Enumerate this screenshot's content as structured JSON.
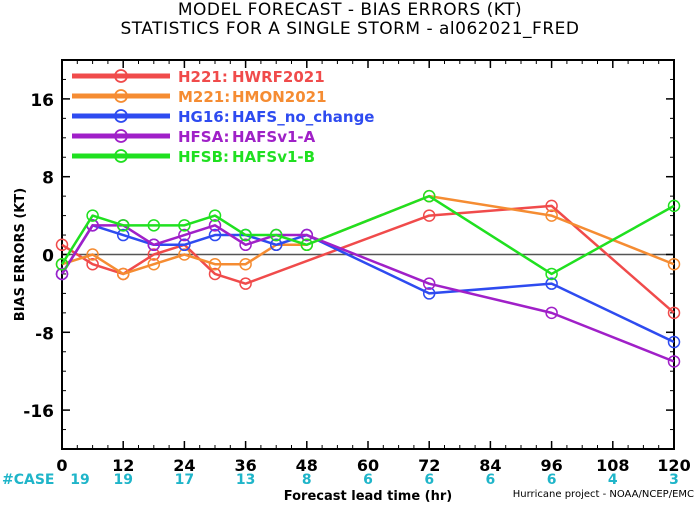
{
  "title": [
    "MODEL FORECAST - BIAS ERRORS (KT)",
    "STATISTICS FOR A SINGLE STORM - al062021_FRED"
  ],
  "credit": "Hurricane project - NOAA/NCEP/EMC",
  "chart_data": {
    "type": "line",
    "xlabel": "Forecast lead time (hr)",
    "ylabel": "BIAS ERRORS (KT)",
    "xlim": [
      0,
      120
    ],
    "ylim": [
      -20,
      20
    ],
    "x_ticks": [
      0,
      12,
      24,
      36,
      48,
      60,
      72,
      84,
      96,
      108,
      120
    ],
    "y_ticks": [
      -16,
      -8,
      0,
      8,
      16
    ],
    "zero_line": true,
    "grid": false,
    "legend_position": "top-left",
    "case_label": "#CASE",
    "case_color": "#1fb5c9",
    "cases": [
      {
        "x": 0,
        "n": "19"
      },
      {
        "x": 12,
        "n": "19"
      },
      {
        "x": 24,
        "n": "17"
      },
      {
        "x": 36,
        "n": "13"
      },
      {
        "x": 48,
        "n": "8"
      },
      {
        "x": 60,
        "n": "6"
      },
      {
        "x": 72,
        "n": "6"
      },
      {
        "x": 84,
        "n": "6"
      },
      {
        "x": 96,
        "n": "6"
      },
      {
        "x": 108,
        "n": "4"
      },
      {
        "x": 120,
        "n": "3"
      }
    ],
    "series": [
      {
        "name": "H221:",
        "desc": "HWRF2021",
        "color": "#f04b4b",
        "x": [
          0,
          6,
          12,
          18,
          24,
          30,
          36,
          72,
          96,
          120
        ],
        "y": [
          1,
          -1,
          -2,
          0,
          1,
          -2,
          -3,
          4,
          5,
          -6
        ]
      },
      {
        "name": "M221:",
        "desc": "HMON2021",
        "color": "#f58c32",
        "x": [
          0,
          6,
          12,
          18,
          24,
          30,
          36,
          42,
          48,
          72,
          96,
          120
        ],
        "y": [
          -1,
          0,
          -2,
          -1,
          0,
          -1,
          -1,
          1,
          1,
          6,
          4,
          -1
        ]
      },
      {
        "name": "HG16:",
        "desc": "HAFS_no_change",
        "color": "#2e4bf0",
        "x": [
          0,
          6,
          12,
          18,
          24,
          30,
          36,
          42,
          48,
          72,
          96,
          120
        ],
        "y": [
          -2,
          3,
          2,
          1,
          1,
          2,
          2,
          1,
          2,
          -4,
          -3,
          -9
        ]
      },
      {
        "name": "HFSA:",
        "desc": "HAFSv1-A",
        "color": "#a020c8",
        "x": [
          0,
          6,
          12,
          18,
          24,
          30,
          36,
          42,
          48,
          72,
          96,
          120
        ],
        "y": [
          -2,
          3,
          3,
          1,
          2,
          3,
          1,
          2,
          2,
          -3,
          -6,
          -11
        ]
      },
      {
        "name": "HFSB:",
        "desc": "HAFSv1-B",
        "color": "#20e020",
        "x": [
          0,
          6,
          12,
          18,
          24,
          30,
          36,
          42,
          48,
          72,
          96,
          120
        ],
        "y": [
          -1,
          4,
          3,
          3,
          3,
          4,
          2,
          2,
          1,
          6,
          -2,
          5
        ]
      }
    ]
  }
}
